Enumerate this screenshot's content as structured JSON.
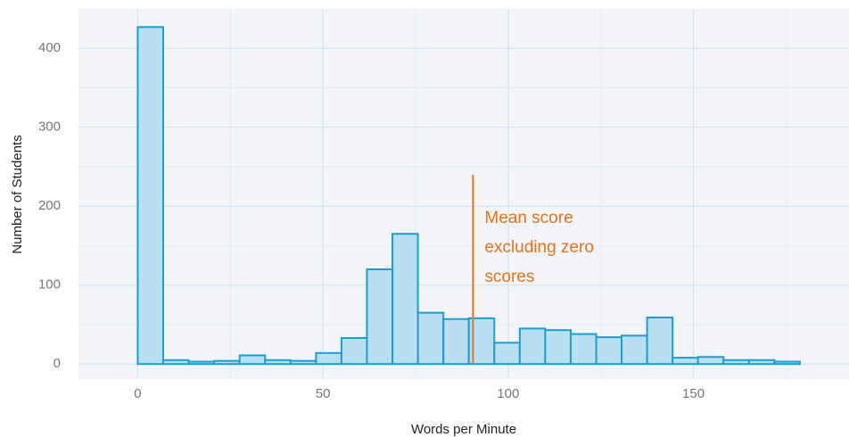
{
  "chart_data": {
    "type": "histogram",
    "xlabel": "Words per Minute",
    "ylabel": "Number of Students",
    "bins": [
      -6.875,
      0,
      6.875,
      13.75,
      20.625,
      27.5,
      34.375,
      41.25,
      48.125,
      55,
      61.875,
      68.75,
      75.625,
      82.5,
      89.375,
      96.25,
      103.125,
      110,
      116.875,
      123.75,
      130.625,
      137.5,
      144.375,
      151.25,
      158.125,
      165,
      171.875,
      178.75,
      185.625
    ],
    "values": [
      0,
      427,
      5,
      3,
      4,
      11,
      5,
      4,
      14,
      33,
      120,
      165,
      65,
      57,
      58,
      27,
      45,
      43,
      38,
      34,
      36,
      59,
      8,
      9,
      5,
      5,
      3,
      0
    ],
    "color": "#b9dff2",
    "edge_color": "#1a9ed4",
    "xlim": [
      -16,
      192
    ],
    "ylim": [
      -19,
      450
    ],
    "xticks": [
      0,
      50,
      100,
      150
    ],
    "yticks": [
      0,
      100,
      200,
      300,
      400
    ],
    "minor_xticks": [
      25,
      75,
      125,
      175
    ],
    "minor_yticks": [
      50,
      150,
      250,
      350
    ],
    "grid": true,
    "mean_line": {
      "x": 90.5,
      "ymax": 240,
      "color": "#e8731a"
    },
    "annotation": [
      "Mean score",
      "excluding zero",
      "scores"
    ]
  }
}
